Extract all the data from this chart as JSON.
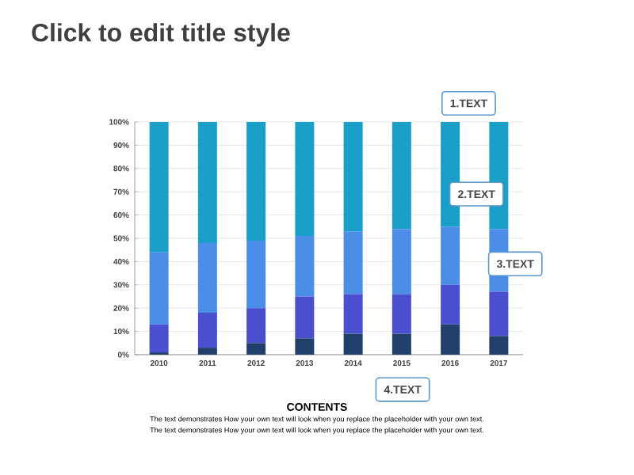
{
  "chart_data": {
    "type": "bar",
    "stacked": true,
    "title": "Click to edit title style",
    "categories": [
      "2010",
      "2011",
      "2012",
      "2013",
      "2014",
      "2015",
      "2016",
      "2017"
    ],
    "series": [
      {
        "color": "#203f6b",
        "values": [
          1,
          3,
          5,
          7,
          9,
          9,
          13,
          8
        ]
      },
      {
        "color": "#4a4fd0",
        "values": [
          12,
          15,
          15,
          18,
          17,
          17,
          17,
          19
        ]
      },
      {
        "color": "#4a8ee8",
        "values": [
          31,
          30,
          29,
          26,
          27,
          28,
          25,
          27
        ]
      },
      {
        "color": "#1a9fc8",
        "values": [
          56,
          52,
          51,
          49,
          47,
          46,
          45,
          46
        ]
      }
    ],
    "ylim": [
      0,
      100
    ],
    "yticks": [
      {
        "value": 0,
        "label": "0%"
      },
      {
        "value": 10,
        "label": "10%"
      },
      {
        "value": 20,
        "label": "20%"
      },
      {
        "value": 30,
        "label": "30%"
      },
      {
        "value": 40,
        "label": "40%"
      },
      {
        "value": 50,
        "label": "50%"
      },
      {
        "value": 60,
        "label": "60%"
      },
      {
        "value": 70,
        "label": "70%"
      },
      {
        "value": 80,
        "label": "80%"
      },
      {
        "value": 90,
        "label": "90%"
      },
      {
        "value": 100,
        "label": "100%"
      }
    ],
    "grid": "y",
    "annotations": [
      "1.TEXT",
      "2.TEXT",
      "3.TEXT",
      "4.TEXT",
      "CONTENTS",
      "The text demonstrates How your own text will look when you replace the placeholder with your own text.",
      "The text demonstrates How your own text will look when you replace the placeholder with your own text."
    ]
  }
}
